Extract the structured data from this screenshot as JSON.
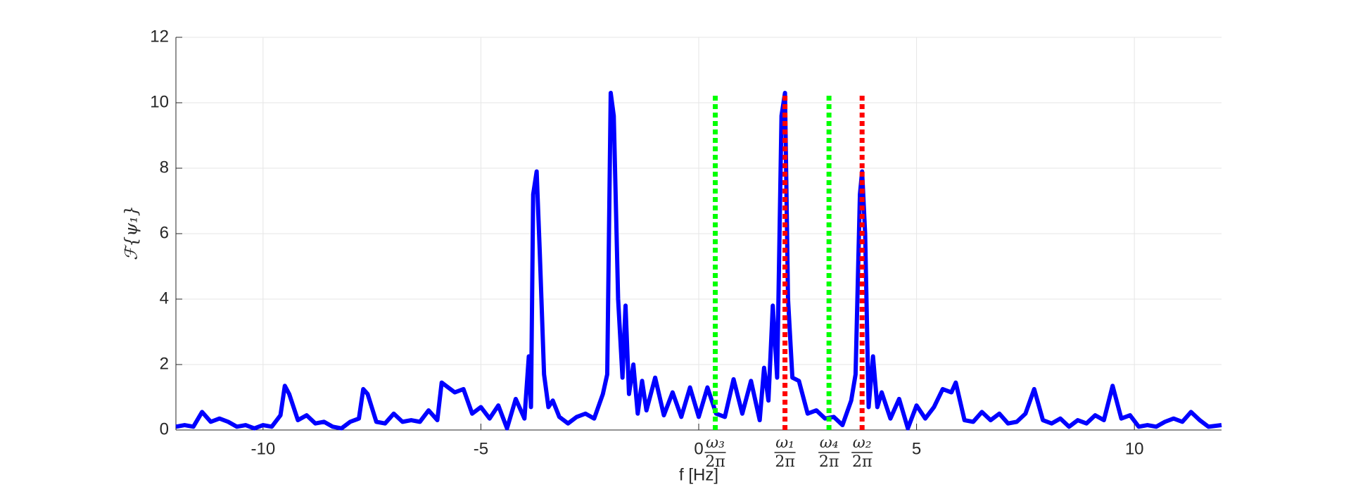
{
  "chart_data": {
    "type": "line",
    "xlabel": "f [Hz]",
    "ylabel": "ℱ{ψ₁}",
    "xlim": [
      -12,
      12
    ],
    "ylim": [
      0,
      12
    ],
    "xticks": [
      -10,
      -5,
      0,
      5,
      10
    ],
    "yticks": [
      0,
      2,
      4,
      6,
      8,
      10,
      12
    ],
    "grid": true,
    "x": [
      -12,
      -11.8,
      -11.6,
      -11.4,
      -11.2,
      -11,
      -10.8,
      -10.6,
      -10.4,
      -10.2,
      -10,
      -9.8,
      -9.6,
      -9.5,
      -9.4,
      -9.2,
      -9,
      -8.8,
      -8.6,
      -8.4,
      -8.2,
      -8,
      -7.8,
      -7.7,
      -7.6,
      -7.4,
      -7.2,
      -7,
      -6.8,
      -6.6,
      -6.4,
      -6.2,
      -6,
      -5.9,
      -5.8,
      -5.6,
      -5.4,
      -5.2,
      -5,
      -4.8,
      -4.6,
      -4.4,
      -4.2,
      -4,
      -3.9,
      -3.85,
      -3.8,
      -3.72,
      -3.65,
      -3.55,
      -3.45,
      -3.35,
      -3.2,
      -3,
      -2.8,
      -2.6,
      -2.4,
      -2.2,
      -2.1,
      -2.02,
      -1.95,
      -1.85,
      -1.75,
      -1.68,
      -1.6,
      -1.5,
      -1.4,
      -1.3,
      -1.2,
      -1,
      -0.8,
      -0.6,
      -0.4,
      -0.2,
      0,
      0.2,
      0.4,
      0.6,
      0.8,
      1,
      1.2,
      1.4,
      1.5,
      1.6,
      1.7,
      1.8,
      1.9,
      1.98,
      2.05,
      2.15,
      2.3,
      2.5,
      2.7,
      2.9,
      3.1,
      3.3,
      3.5,
      3.6,
      3.7,
      3.75,
      3.82,
      3.9,
      4,
      4.1,
      4.2,
      4.4,
      4.6,
      4.8,
      5,
      5.2,
      5.4,
      5.6,
      5.8,
      5.9,
      6.1,
      6.3,
      6.5,
      6.7,
      6.9,
      7.1,
      7.3,
      7.5,
      7.7,
      7.9,
      8.1,
      8.3,
      8.5,
      8.7,
      8.9,
      9.1,
      9.3,
      9.5,
      9.7,
      9.9,
      10.1,
      10.3,
      10.5,
      10.7,
      10.9,
      11.1,
      11.3,
      11.5,
      11.7,
      12
    ],
    "series": [
      {
        "color": "#0000ff",
        "values": [
          0.1,
          0.15,
          0.1,
          0.55,
          0.25,
          0.35,
          0.25,
          0.1,
          0.15,
          0.05,
          0.15,
          0.1,
          0.45,
          1.35,
          1.1,
          0.3,
          0.45,
          0.2,
          0.25,
          0.1,
          0.05,
          0.25,
          0.35,
          1.25,
          1.1,
          0.25,
          0.2,
          0.5,
          0.25,
          0.3,
          0.25,
          0.6,
          0.3,
          1.45,
          1.35,
          1.15,
          1.25,
          0.5,
          0.7,
          0.35,
          0.75,
          0.05,
          0.95,
          0.35,
          2.25,
          0.7,
          7.2,
          7.9,
          5.5,
          1.7,
          0.7,
          0.9,
          0.4,
          0.2,
          0.4,
          0.5,
          0.35,
          1.1,
          1.7,
          10.3,
          9.6,
          4,
          1.6,
          3.8,
          1.1,
          2,
          0.5,
          1.5,
          0.6,
          1.6,
          0.45,
          1.15,
          0.4,
          1.3,
          0.4,
          1.3,
          0.5,
          0.4,
          1.55,
          0.5,
          1.5,
          0.3,
          1.9,
          0.9,
          3.8,
          1.6,
          9.6,
          10.3,
          4,
          1.6,
          1.5,
          0.5,
          0.6,
          0.35,
          0.4,
          0.15,
          0.9,
          1.7,
          7.2,
          7.9,
          6,
          0.7,
          2.25,
          0.7,
          1.15,
          0.35,
          0.95,
          0.05,
          0.75,
          0.35,
          0.7,
          1.25,
          1.15,
          1.45,
          0.3,
          0.25,
          0.55,
          0.3,
          0.5,
          0.2,
          0.25,
          0.5,
          1.25,
          0.3,
          0.2,
          0.35,
          0.1,
          0.3,
          0.2,
          0.45,
          0.3,
          1.35,
          0.35,
          0.45,
          0.1,
          0.15,
          0.1,
          0.25,
          0.35,
          0.25,
          0.55,
          0.3,
          0.1,
          0.15
        ]
      }
    ],
    "vlines": [
      {
        "x": 0.38,
        "top": 10.3,
        "color": "#00ff00",
        "numerator": "ω₃",
        "denominator": "2π"
      },
      {
        "x": 1.98,
        "top": 10.3,
        "color": "#ff0000",
        "numerator": "ω₁",
        "denominator": "2π"
      },
      {
        "x": 2.99,
        "top": 10.3,
        "color": "#00ff00",
        "numerator": "ω₄",
        "denominator": "2π"
      },
      {
        "x": 3.75,
        "top": 10.3,
        "color": "#ff0000",
        "numerator": "ω₂",
        "denominator": "2π"
      }
    ]
  }
}
